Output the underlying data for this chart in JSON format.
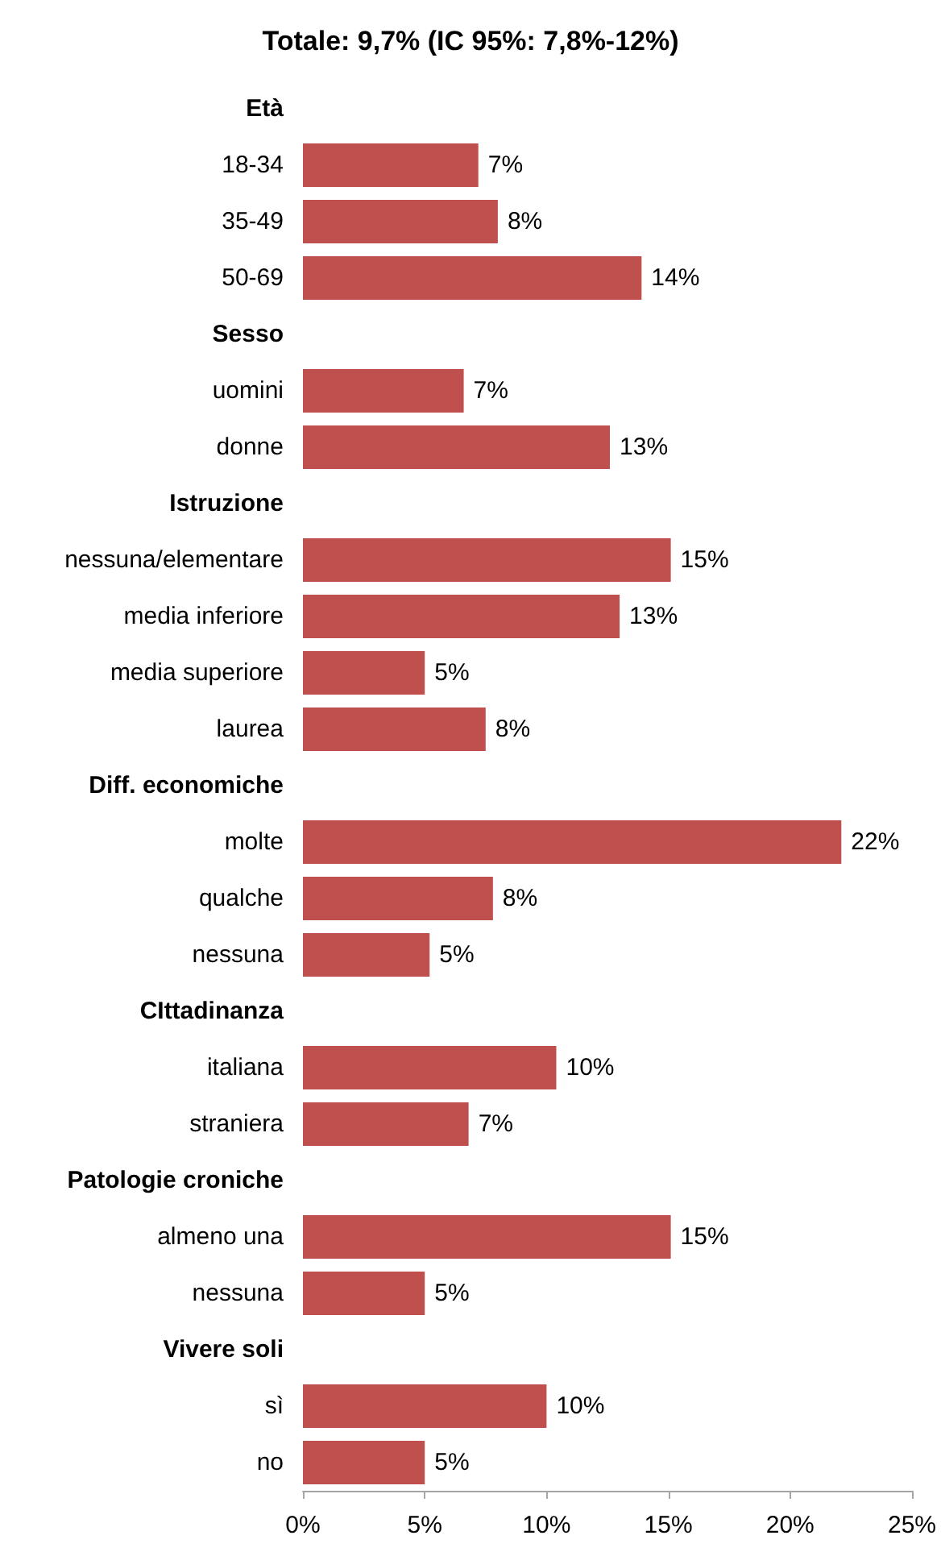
{
  "chart_data": {
    "type": "bar",
    "orientation": "horizontal",
    "title": "Totale: 9,7% (IC 95%: 7,8%-12%)",
    "categories": [
      "Età",
      "18-34",
      "35-49",
      "50-69",
      "Sesso",
      "uomini",
      "donne",
      "Istruzione",
      "nessuna/elementare",
      "media inferiore",
      "media superiore",
      "laurea",
      "Diff. economiche",
      "molte",
      "qualche",
      "nessuna",
      "CIttadinanza",
      "italiana",
      "straniera",
      "Patologie croniche",
      "almeno una",
      "nessuna",
      "Vivere soli",
      "sì",
      "no"
    ],
    "values": [
      null,
      7.2,
      8.0,
      13.9,
      null,
      6.6,
      12.6,
      null,
      15.1,
      13.0,
      5.0,
      7.5,
      null,
      22.1,
      7.8,
      5.2,
      null,
      10.4,
      6.8,
      null,
      15.1,
      5.0,
      null,
      10.0,
      5.0
    ],
    "value_labels": [
      null,
      "7%",
      "8%",
      "14%",
      null,
      "7%",
      "13%",
      null,
      "15%",
      "13%",
      "5%",
      "8%",
      null,
      "22%",
      "8%",
      "5%",
      null,
      "10%",
      "7%",
      null,
      "15%",
      "5%",
      null,
      "10%",
      "5%"
    ],
    "color": "#c0504d",
    "xlim": [
      0,
      25
    ],
    "xticks": [
      {
        "value": 0,
        "label": "0%"
      },
      {
        "value": 5,
        "label": "5%"
      },
      {
        "value": 10,
        "label": "10%"
      },
      {
        "value": 15,
        "label": "15%"
      },
      {
        "value": 20,
        "label": "20%"
      },
      {
        "value": 25,
        "label": "25%"
      }
    ],
    "grid": false
  }
}
